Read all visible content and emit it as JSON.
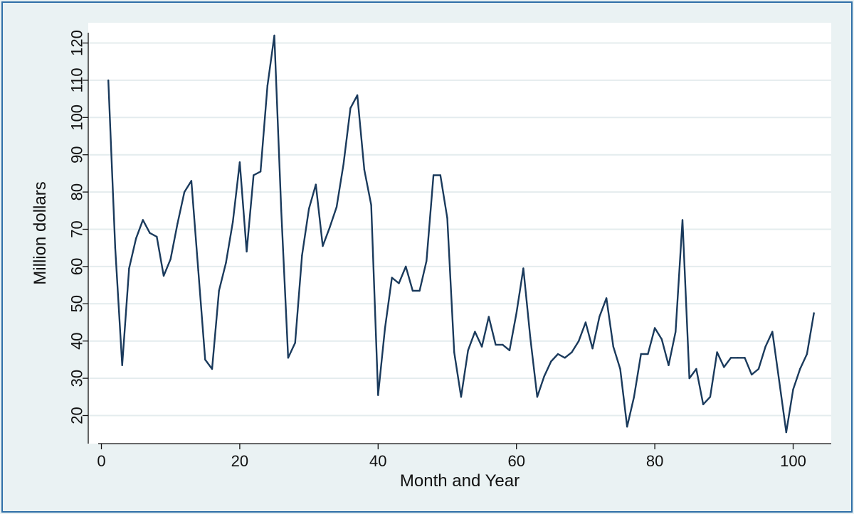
{
  "chart_data": {
    "type": "line",
    "title": "",
    "xlabel": "Month and Year",
    "ylabel": "Million dollars",
    "xlim": [
      0,
      103
    ],
    "ylim": [
      15,
      122
    ],
    "xticks": [
      0,
      20,
      40,
      60,
      80,
      100
    ],
    "yticks": [
      20,
      30,
      40,
      50,
      60,
      70,
      80,
      90,
      100,
      110,
      120
    ],
    "grid": true,
    "legend": "none",
    "colors": {
      "line": "#1a3a5c",
      "plot_bg": "#ffffff",
      "outer_bg": "#eaf2f3",
      "grid": "#e4ecee",
      "frame": "#2f6fa7"
    },
    "series": [
      {
        "x": [
          1,
          2,
          3,
          4,
          5,
          6,
          7,
          8,
          9,
          10,
          11,
          12,
          13,
          14,
          15,
          16,
          17,
          18,
          19,
          20,
          21,
          22,
          23,
          24,
          25,
          26,
          27,
          28,
          29,
          30,
          31,
          32,
          33,
          34,
          35,
          36,
          37,
          38,
          39,
          40,
          41,
          42,
          43,
          44,
          45,
          46,
          47,
          48,
          49,
          50,
          51,
          52,
          53,
          54,
          55,
          56,
          57,
          58,
          59,
          60,
          61,
          62,
          63,
          64,
          65,
          66,
          67,
          68,
          69,
          70,
          71,
          72,
          73,
          74,
          75,
          76,
          77,
          78,
          79,
          80,
          81,
          82,
          83,
          84,
          85,
          86,
          87,
          88,
          89,
          90,
          91,
          92,
          93,
          94,
          95,
          96,
          97,
          98,
          99,
          100,
          101,
          102,
          103
        ],
        "values": [
          110,
          65,
          33.5,
          59.5,
          67.5,
          72.5,
          69,
          68,
          57.5,
          62,
          71.5,
          80,
          83,
          59,
          35,
          32.5,
          53.5,
          61,
          72,
          88,
          64,
          84.5,
          85.5,
          108.5,
          122,
          75,
          35.5,
          39.5,
          63,
          75.5,
          82,
          65.5,
          70.5,
          76,
          87.5,
          102.5,
          106,
          86,
          76.5,
          25.5,
          43.5,
          57,
          55.5,
          60,
          53.5,
          53.5,
          61.5,
          84.5,
          84.5,
          73,
          37,
          25,
          37.5,
          42.5,
          38.5,
          46.5,
          39,
          39,
          37.5,
          47.5,
          59.5,
          41,
          25,
          30.5,
          34.5,
          36.5,
          35.5,
          37,
          40,
          45,
          38,
          46.5,
          51.5,
          38.5,
          32.5,
          17,
          25,
          36.5,
          36.5,
          43.5,
          40.5,
          33.5,
          42.5,
          72.5,
          30,
          32.5,
          23,
          25,
          37,
          33,
          35.5,
          35.5,
          35.5,
          31,
          32.5,
          38.5,
          42.5,
          29,
          15.5,
          27,
          32.5,
          36.5,
          47.5
        ]
      }
    ]
  }
}
